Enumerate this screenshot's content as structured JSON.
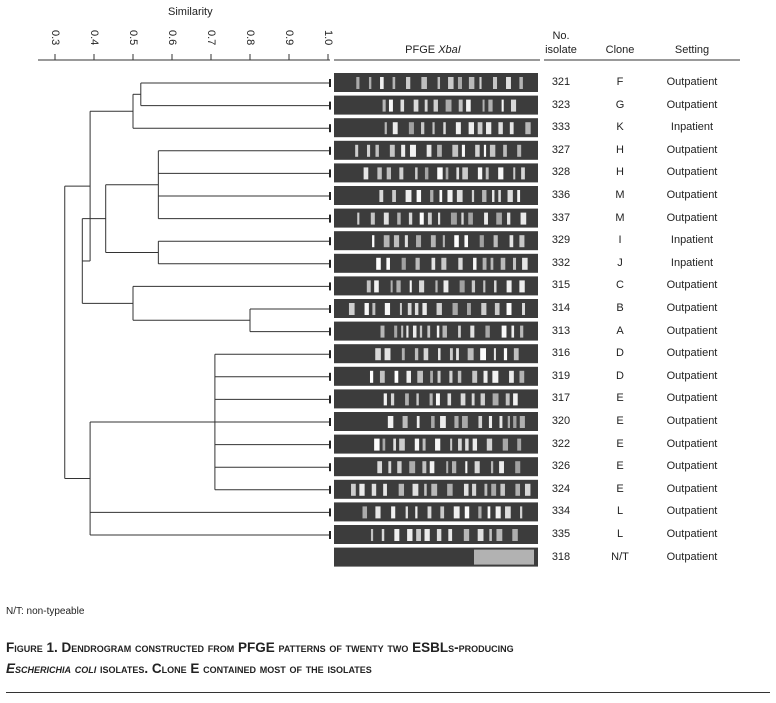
{
  "axis": {
    "title": "Similarity",
    "ticks": [
      "0.3",
      "0.4",
      "0.5",
      "0.6",
      "0.7",
      "0.8",
      "0.9",
      "1.0"
    ],
    "tick_values": [
      0.3,
      0.4,
      0.5,
      0.6,
      0.7,
      0.8,
      0.9,
      1.0
    ]
  },
  "headers": {
    "gel": "PFGE ",
    "gel_italic": "XbaI",
    "isolate_line1": "No.",
    "isolate_line2": "isolate",
    "clone": "Clone",
    "setting": "Setting"
  },
  "rows": [
    {
      "isolate": "321",
      "clone": "F",
      "setting": "Outpatient"
    },
    {
      "isolate": "323",
      "clone": "G",
      "setting": "Outpatient"
    },
    {
      "isolate": "333",
      "clone": "K",
      "setting": "Inpatient"
    },
    {
      "isolate": "327",
      "clone": "H",
      "setting": "Outpatient"
    },
    {
      "isolate": "328",
      "clone": "H",
      "setting": "Outpatient"
    },
    {
      "isolate": "336",
      "clone": "M",
      "setting": "Outpatient"
    },
    {
      "isolate": "337",
      "clone": "M",
      "setting": "Outpatient"
    },
    {
      "isolate": "329",
      "clone": "I",
      "setting": "Inpatient"
    },
    {
      "isolate": "332",
      "clone": "J",
      "setting": "Inpatient"
    },
    {
      "isolate": "315",
      "clone": "C",
      "setting": "Outpatient"
    },
    {
      "isolate": "314",
      "clone": "B",
      "setting": "Outpatient"
    },
    {
      "isolate": "313",
      "clone": "A",
      "setting": "Outpatient"
    },
    {
      "isolate": "316",
      "clone": "D",
      "setting": "Outpatient"
    },
    {
      "isolate": "319",
      "clone": "D",
      "setting": "Outpatient"
    },
    {
      "isolate": "317",
      "clone": "E",
      "setting": "Outpatient"
    },
    {
      "isolate": "320",
      "clone": "E",
      "setting": "Outpatient"
    },
    {
      "isolate": "322",
      "clone": "E",
      "setting": "Outpatient"
    },
    {
      "isolate": "326",
      "clone": "E",
      "setting": "Outpatient"
    },
    {
      "isolate": "324",
      "clone": "E",
      "setting": "Outpatient"
    },
    {
      "isolate": "334",
      "clone": "L",
      "setting": "Outpatient"
    },
    {
      "isolate": "335",
      "clone": "L",
      "setting": "Outpatient"
    },
    {
      "isolate": "318",
      "clone": "N/T",
      "setting": "Outpatient"
    }
  ],
  "dendrogram": [
    {
      "sim": 0.52,
      "children": [
        0,
        1
      ]
    },
    {
      "sim": 0.5,
      "children": [
        "n0",
        2
      ]
    },
    {
      "sim": 0.565,
      "children": [
        3,
        4,
        5,
        6
      ]
    },
    {
      "sim": 0.565,
      "children": [
        7,
        8
      ]
    },
    {
      "sim": 0.43,
      "children": [
        "n2",
        "n3"
      ]
    },
    {
      "sim": 0.8,
      "children": [
        10,
        11
      ]
    },
    {
      "sim": 0.5,
      "children": [
        9,
        "n5"
      ]
    },
    {
      "sim": 0.37,
      "children": [
        "n4",
        "n6"
      ]
    },
    {
      "sim": 0.39,
      "children": [
        "n1",
        "n7"
      ]
    },
    {
      "sim": 0.71,
      "children": [
        12,
        13,
        14,
        15,
        16,
        17,
        18
      ]
    },
    {
      "sim": 0.39,
      "children": [
        "n9",
        19,
        20
      ]
    },
    {
      "sim": 0.325,
      "children": [
        "n8",
        "n10"
      ]
    }
  ],
  "note": "N/T: non-typeable",
  "caption": {
    "line1": "Figure 1. Dendrogram constructed from PFGE patterns of twenty two ESBLs-producing",
    "italic": "Escherichia coli",
    "line2": " isolates. Clone E contained most of the isolates"
  }
}
